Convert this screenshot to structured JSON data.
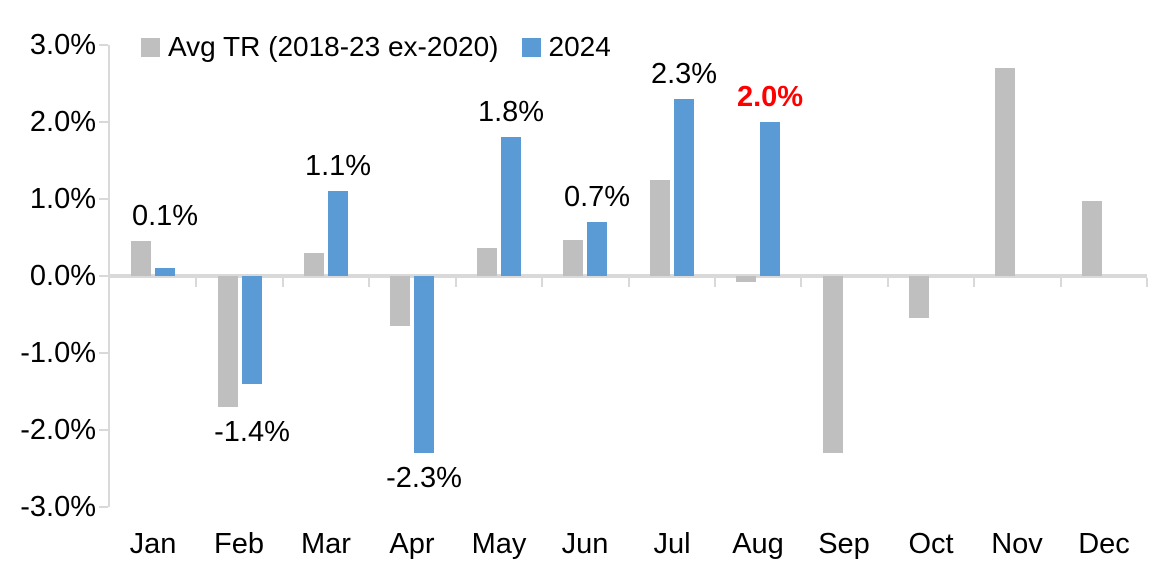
{
  "chart_data": {
    "type": "bar",
    "title": "",
    "xlabel": "",
    "ylabel": "",
    "categories": [
      "Jan",
      "Feb",
      "Mar",
      "Apr",
      "May",
      "Jun",
      "Jul",
      "Aug",
      "Sep",
      "Oct",
      "Nov",
      "Dec"
    ],
    "series": [
      {
        "name": "Avg TR (2018-23 ex-2020)",
        "color": "#BFBFBF",
        "values": [
          0.45,
          -1.7,
          0.3,
          -0.65,
          0.37,
          0.47,
          1.25,
          -0.08,
          -2.3,
          -0.55,
          2.7,
          0.97
        ]
      },
      {
        "name": "2024",
        "color": "#5B9BD5",
        "values": [
          0.1,
          -1.4,
          1.1,
          -2.3,
          1.8,
          0.7,
          2.3,
          2.0,
          null,
          null,
          null,
          null
        ]
      }
    ],
    "data_labels": [
      {
        "text": "0.1%",
        "highlight": false
      },
      {
        "text": "-1.4%",
        "highlight": false
      },
      {
        "text": "1.1%",
        "highlight": false
      },
      {
        "text": "-2.3%",
        "highlight": false
      },
      {
        "text": "1.8%",
        "highlight": false
      },
      {
        "text": "0.7%",
        "highlight": false
      },
      {
        "text": "2.3%",
        "highlight": false
      },
      {
        "text": "2.0%",
        "highlight": true
      },
      null,
      null,
      null,
      null
    ],
    "ytick_labels": [
      "3.0%",
      "2.0%",
      "1.0%",
      "0.0%",
      "-1.0%",
      "-2.0%",
      "-3.0%"
    ],
    "ytick_values": [
      3.0,
      2.0,
      1.0,
      0.0,
      -1.0,
      -2.0,
      -3.0
    ],
    "ylim": [
      -3.0,
      3.0
    ],
    "grid": false,
    "legend_position": "top",
    "colors": {
      "background": "#FFFFFF",
      "axis": "#D9D9D9",
      "text": "#000000",
      "highlight": "#FF0000"
    }
  }
}
